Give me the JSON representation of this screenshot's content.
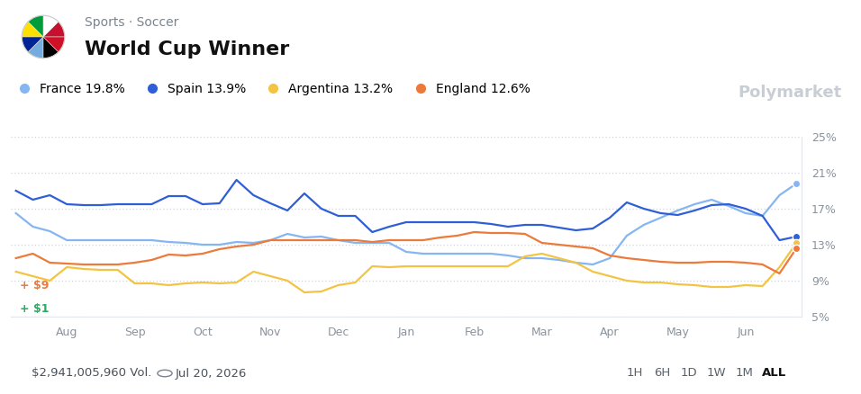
{
  "header": {
    "category": "Sports · Soccer",
    "watermark": "Polymarket"
  },
  "chart_data": {
    "type": "line",
    "title": "World Cup Winner",
    "categories": [
      null,
      null,
      null,
      "Aug",
      null,
      null,
      null,
      "Sep",
      null,
      null,
      null,
      "Oct",
      null,
      null,
      null,
      "Nov",
      null,
      null,
      null,
      "Dec",
      null,
      null,
      null,
      "Jan",
      null,
      null,
      null,
      "Feb",
      null,
      null,
      null,
      "Mar",
      null,
      null,
      null,
      "Apr",
      null,
      null,
      null,
      "May",
      null,
      null,
      null,
      "Jun",
      null,
      null,
      null
    ],
    "series": [
      {
        "name": "France 19.8%",
        "color": "#86b6f2",
        "values": [
          16.5,
          15.0,
          14.5,
          13.5,
          13.5,
          13.5,
          13.5,
          13.5,
          13.5,
          13.3,
          13.2,
          13.0,
          13.0,
          13.3,
          13.2,
          13.5,
          14.2,
          13.8,
          13.9,
          13.5,
          13.2,
          13.2,
          13.2,
          12.2,
          12.0,
          12.0,
          12.0,
          12.0,
          12.0,
          11.8,
          11.5,
          11.5,
          11.3,
          11.0,
          10.8,
          11.5,
          14.0,
          15.2,
          16.0,
          16.8,
          17.5,
          18.0,
          17.3,
          16.5,
          16.2,
          18.5,
          19.8
        ]
      },
      {
        "name": "Spain 13.9%",
        "color": "#2f5fd6",
        "values": [
          19.0,
          18.0,
          18.5,
          17.5,
          17.4,
          17.4,
          17.5,
          17.5,
          17.5,
          18.4,
          18.4,
          17.5,
          17.6,
          20.2,
          18.5,
          17.6,
          16.8,
          18.7,
          17.0,
          16.2,
          16.2,
          14.4,
          15.0,
          15.5,
          15.5,
          15.5,
          15.5,
          15.5,
          15.3,
          15.0,
          15.2,
          15.2,
          14.9,
          14.6,
          14.8,
          16.0,
          17.7,
          17.0,
          16.5,
          16.3,
          16.8,
          17.4,
          17.5,
          17.0,
          16.2,
          13.5,
          13.9
        ]
      },
      {
        "name": "Argentina 13.2%",
        "color": "#f3c443",
        "values": [
          10.0,
          9.5,
          9.0,
          10.5,
          10.3,
          10.2,
          10.2,
          8.7,
          8.7,
          8.5,
          8.7,
          8.8,
          8.7,
          8.8,
          10.0,
          9.5,
          9.0,
          7.7,
          7.8,
          8.5,
          8.8,
          10.6,
          10.5,
          10.6,
          10.6,
          10.6,
          10.6,
          10.6,
          10.6,
          10.6,
          11.7,
          12.0,
          11.5,
          11.0,
          10.0,
          9.5,
          9.0,
          8.8,
          8.8,
          8.6,
          8.5,
          8.3,
          8.3,
          8.5,
          8.4,
          10.5,
          13.2
        ]
      },
      {
        "name": "England 12.6%",
        "color": "#ec7a3a",
        "values": [
          11.5,
          12.0,
          11.0,
          10.9,
          10.8,
          10.8,
          10.8,
          11.0,
          11.3,
          11.9,
          11.8,
          12.0,
          12.5,
          12.8,
          13.0,
          13.5,
          13.5,
          13.5,
          13.5,
          13.5,
          13.5,
          13.3,
          13.5,
          13.5,
          13.5,
          13.8,
          14.0,
          14.4,
          14.3,
          14.3,
          14.2,
          13.2,
          13.0,
          12.8,
          12.6,
          11.8,
          11.5,
          11.3,
          11.1,
          11.0,
          11.0,
          11.1,
          11.1,
          11.0,
          10.8,
          9.8,
          12.6
        ]
      }
    ],
    "ylim": [
      5,
      25
    ],
    "yticks": [
      {
        "value": 5,
        "label": "5%"
      },
      {
        "value": 9,
        "label": "9%"
      },
      {
        "value": 13,
        "label": "13%"
      },
      {
        "value": 17,
        "label": "17%"
      },
      {
        "value": 21,
        "label": "21%"
      },
      {
        "value": 25,
        "label": "25%"
      }
    ],
    "grid": true,
    "legend": "upper left",
    "annotations": [
      {
        "text": "+ $9",
        "color": "#ec7a3a"
      },
      {
        "text": "+ $1",
        "color": "#27ae60"
      }
    ]
  },
  "footer": {
    "volume": "$2,941,005,960 Vol.",
    "end_date": "Jul 20, 2026",
    "time_ranges": [
      "1H",
      "6H",
      "1D",
      "1W",
      "1M",
      "ALL"
    ],
    "selected": "ALL"
  }
}
